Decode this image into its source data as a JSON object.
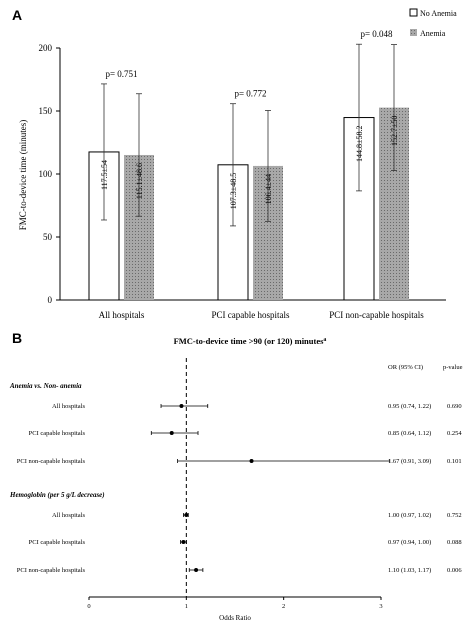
{
  "chart_data": [
    {
      "panel": "A",
      "type": "bar",
      "ylabel": "FMC-to-device time (minutes)",
      "ylim": [
        0,
        200
      ],
      "yticks": [
        0,
        50,
        100,
        150,
        200
      ],
      "grid": false,
      "legend_position": "top-right",
      "categories": [
        "All hospitals",
        "PCI capable hospitals",
        "PCI non-capable hospitals"
      ],
      "series": [
        {
          "name": "No Anemia",
          "fill": "#ffffff",
          "values": [
            117.5,
            107.3,
            144.8
          ],
          "errors": [
            54,
            48.5,
            58.2
          ],
          "labels": [
            "117.5±54",
            "107.3±48.5",
            "144.8±58.2"
          ]
        },
        {
          "name": "Anemia",
          "fill": "#a8a8a8",
          "values": [
            115.1,
            106.4,
            152.7
          ],
          "errors": [
            48.6,
            44,
            50
          ],
          "labels": [
            "115.1±48.6",
            "106.4±44",
            "152.7±50"
          ]
        }
      ],
      "pvalues": [
        "p= 0.751",
        "p= 0.772",
        "p= 0.048"
      ]
    },
    {
      "panel": "B",
      "type": "scatter",
      "subtype": "forest",
      "title": "FMC-to-device time >90 (or 120) minutes",
      "title_superscript": "a",
      "xlabel": "Odds Ratio",
      "xlim": [
        0,
        3
      ],
      "xticks": [
        0,
        1,
        2,
        3
      ],
      "reference_line": 1,
      "column_headers": {
        "or": "OR   (95% CI)",
        "p": "p-value"
      },
      "groups": [
        {
          "heading": "Anemia vs. Non- anemia",
          "rows": [
            {
              "label": "All hospitals",
              "or": 0.95,
              "lo": 0.74,
              "hi": 1.22,
              "or_text": "0.95 (0.74, 1.22)",
              "p_text": "0.690"
            },
            {
              "label": "PCI capable hospitals",
              "or": 0.85,
              "lo": 0.64,
              "hi": 1.12,
              "or_text": "0.85 (0.64, 1.12)",
              "p_text": "0.254"
            },
            {
              "label": "PCI non-capable hospitals",
              "or": 1.67,
              "lo": 0.91,
              "hi": 3.09,
              "or_text": "1.67 (0.91, 3.09)",
              "p_text": "0.101"
            }
          ]
        },
        {
          "heading": "Hemoglobin (per 5 g/L decrease)",
          "rows": [
            {
              "label": "All hospitals",
              "or": 1.0,
              "lo": 0.97,
              "hi": 1.02,
              "or_text": "1.00 (0.97, 1.02)",
              "p_text": "0.752"
            },
            {
              "label": "PCI capable hospitals",
              "or": 0.97,
              "lo": 0.94,
              "hi": 1.0,
              "or_text": "0.97 (0.94, 1.00)",
              "p_text": "0.088"
            },
            {
              "label": "PCI non-capable hospitals",
              "or": 1.1,
              "lo": 1.03,
              "hi": 1.17,
              "or_text": "1.10 (1.03, 1.17)",
              "p_text": "0.006"
            }
          ]
        }
      ]
    }
  ]
}
